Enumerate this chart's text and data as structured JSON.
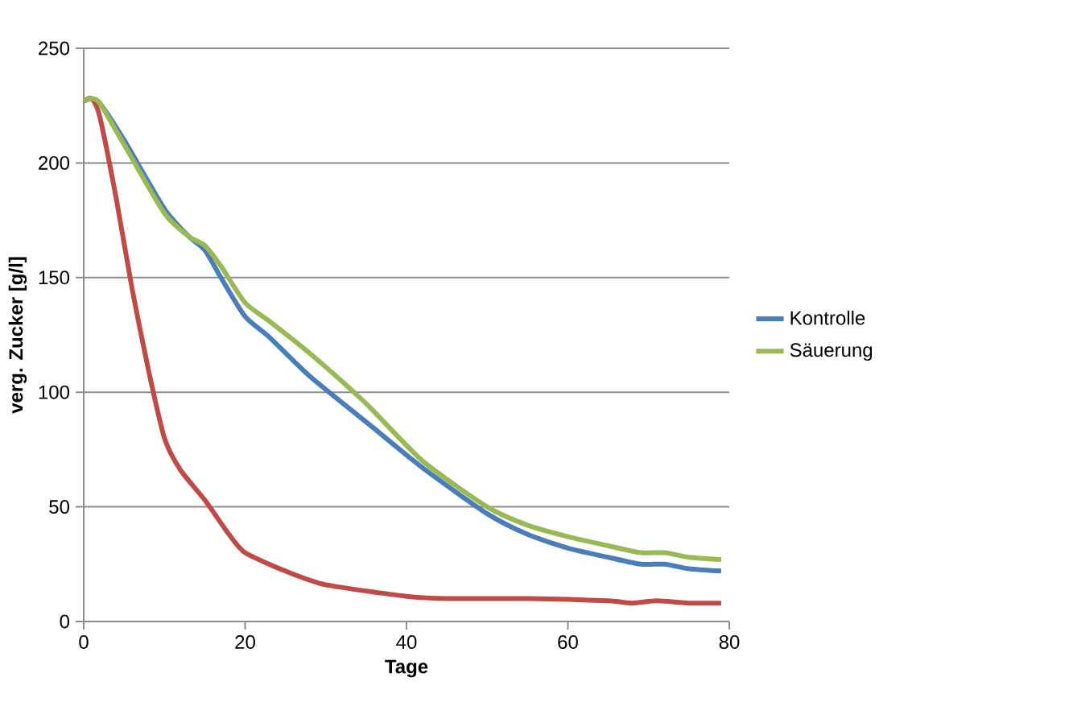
{
  "chart_data": {
    "type": "line",
    "xlabel": "Tage",
    "ylabel": "verg. Zucker [g/l]",
    "xlim": [
      0,
      80
    ],
    "ylim": [
      0,
      250
    ],
    "xticks": [
      0,
      20,
      40,
      60,
      80
    ],
    "yticks": [
      0,
      50,
      100,
      150,
      200,
      250
    ],
    "grid": "y",
    "legend": "right",
    "marker": "none",
    "line_style": "solid",
    "series": [
      {
        "name": "Kontrolle",
        "color": "#4a7ebb",
        "x": [
          0,
          1,
          2,
          5,
          10,
          13,
          15,
          17,
          20,
          23,
          28,
          35,
          42,
          50,
          55,
          60,
          65,
          69,
          72,
          75,
          79
        ],
        "values": [
          227,
          228,
          226,
          210,
          180,
          168,
          162,
          150,
          133,
          124,
          107,
          87,
          67,
          47,
          38,
          32,
          28,
          25,
          25,
          23,
          22
        ]
      },
      {
        "color": "#be4b48",
        "x": [
          0,
          1,
          2,
          4,
          6,
          8,
          10,
          12,
          15,
          18,
          20,
          25,
          30,
          40,
          45,
          55,
          65,
          68,
          71,
          75,
          79
        ],
        "values": [
          227,
          228,
          220,
          185,
          145,
          110,
          80,
          66,
          53,
          38,
          30,
          22,
          16,
          11,
          10,
          10,
          9,
          8,
          9,
          8,
          8
        ]
      },
      {
        "name": "Säuerung",
        "color": "#98b954",
        "x": [
          0,
          1,
          2,
          5,
          10,
          13,
          15,
          17,
          20,
          23,
          28,
          35,
          42,
          50,
          55,
          60,
          65,
          69,
          72,
          75,
          79
        ],
        "values": [
          227,
          228,
          226,
          208,
          178,
          168,
          164,
          155,
          139,
          131,
          117,
          95,
          70,
          50,
          42,
          37,
          33,
          30,
          30,
          28,
          27
        ]
      }
    ]
  }
}
